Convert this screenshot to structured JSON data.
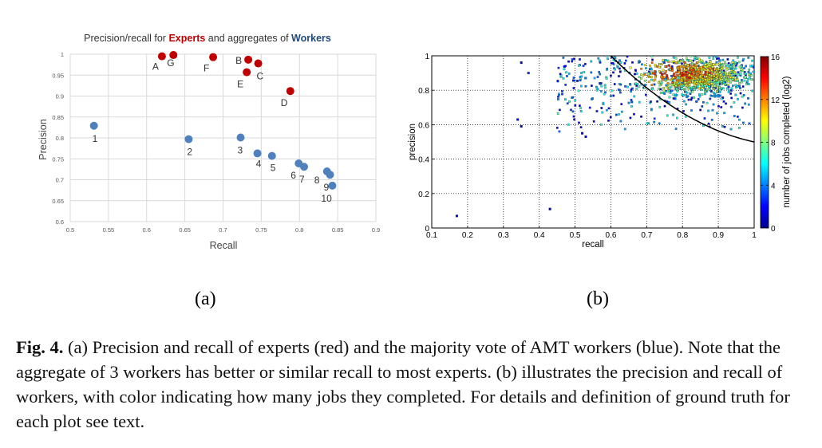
{
  "chart_data": [
    {
      "type": "scatter",
      "title_parts": [
        "Precision/recall for ",
        "Experts",
        " and aggregates of ",
        "Workers"
      ],
      "xlabel": "Recall",
      "ylabel": "Precision",
      "xlim": [
        0.5,
        0.9
      ],
      "ylim": [
        0.6,
        1.0
      ],
      "xticks": [
        "0.5",
        "0.55",
        "0.6",
        "0.65",
        "0.7",
        "0.75",
        "0.8",
        "0.85",
        "0.9"
      ],
      "yticks": [
        "0.6",
        "0.65",
        "0.7",
        "0.75",
        "0.8",
        "0.85",
        "0.9",
        "0.95",
        "1"
      ],
      "grid": true,
      "colors": {
        "experts": "#c00000",
        "workers": "#4f81bd"
      },
      "series": [
        {
          "name": "Experts",
          "points": [
            {
              "label": "A",
              "x": 0.62,
              "y": 0.995
            },
            {
              "label": "G",
              "x": 0.635,
              "y": 0.998
            },
            {
              "label": "F",
              "x": 0.687,
              "y": 0.993
            },
            {
              "label": "B",
              "x": 0.733,
              "y": 0.987
            },
            {
              "label": "C",
              "x": 0.746,
              "y": 0.978
            },
            {
              "label": "E",
              "x": 0.731,
              "y": 0.957
            },
            {
              "label": "D",
              "x": 0.788,
              "y": 0.912
            }
          ]
        },
        {
          "name": "Workers",
          "points": [
            {
              "label": "1",
              "x": 0.531,
              "y": 0.829
            },
            {
              "label": "2",
              "x": 0.655,
              "y": 0.797
            },
            {
              "label": "3",
              "x": 0.723,
              "y": 0.801
            },
            {
              "label": "4",
              "x": 0.745,
              "y": 0.763
            },
            {
              "label": "5",
              "x": 0.764,
              "y": 0.757
            },
            {
              "label": "6",
              "x": 0.799,
              "y": 0.739
            },
            {
              "label": "7",
              "x": 0.806,
              "y": 0.731
            },
            {
              "label": "8",
              "x": 0.836,
              "y": 0.72
            },
            {
              "label": "9",
              "x": 0.84,
              "y": 0.712
            },
            {
              "label": "10",
              "x": 0.843,
              "y": 0.686
            }
          ]
        }
      ]
    },
    {
      "type": "scatter",
      "xlabel": "recall",
      "ylabel": "precision",
      "xlim": [
        0.1,
        1.0
      ],
      "ylim": [
        0,
        1
      ],
      "xticks": [
        "0.1",
        "0.2",
        "0.3",
        "0.4",
        "0.5",
        "0.6",
        "0.7",
        "0.8",
        "0.9",
        "1"
      ],
      "yticks": [
        "0",
        "0.2",
        "0.4",
        "0.6",
        "0.8",
        "1"
      ],
      "grid": "dotted",
      "colorbar": {
        "label": "number of jobs completed (log2)",
        "range": [
          0,
          16
        ],
        "ticks": [
          "0",
          "4",
          "8",
          "12",
          "16"
        ],
        "colormap": "jet"
      },
      "curve": "hyperbola from (0.6, 1.0) to (1.0, 0.5)",
      "points_note": "approx. 1000 worker points, densest near recall 0.7-1.0, precision 0.8-1.0",
      "outliers": [
        {
          "x": 0.17,
          "y": 0.07,
          "c": 1
        },
        {
          "x": 0.43,
          "y": 0.11,
          "c": 1
        },
        {
          "x": 0.34,
          "y": 0.63,
          "c": 2
        },
        {
          "x": 0.35,
          "y": 0.59,
          "c": 1
        },
        {
          "x": 0.52,
          "y": 0.55,
          "c": 2
        },
        {
          "x": 0.53,
          "y": 0.53,
          "c": 2
        },
        {
          "x": 0.35,
          "y": 0.96,
          "c": 1
        },
        {
          "x": 0.37,
          "y": 0.9,
          "c": 3
        }
      ]
    }
  ],
  "sublabels": {
    "a": "(a)",
    "b": "(b)"
  },
  "caption": {
    "bold": "Fig. 4.",
    "text": " (a) Precision and recall of experts (red) and the majority vote of AMT workers (blue). Note that the aggregate of 3 workers has better or similar recall to most experts. (b) illustrates the precision and recall of workers, with color indicating how many jobs they completed. For details and definition of ground truth for each plot see text."
  }
}
